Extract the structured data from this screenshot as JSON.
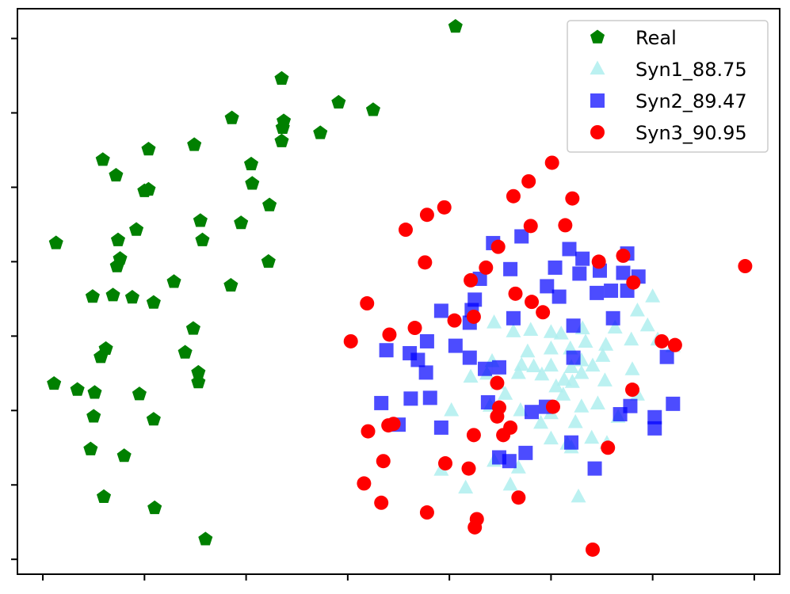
{
  "chart_data": {
    "type": "scatter",
    "title": "",
    "xlabel": "",
    "ylabel": "",
    "xlim": [
      -0.25,
      7.25
    ],
    "ylim": [
      -0.2,
      7.4
    ],
    "xticks": [
      0,
      1,
      2,
      3,
      4,
      5,
      6,
      7
    ],
    "yticks": [
      0,
      1,
      2,
      3,
      4,
      5,
      6,
      7
    ],
    "tick_labels_shown": false,
    "grid": false,
    "legend_position": "top-right",
    "series": [
      {
        "name": "Real",
        "marker": "pentagon",
        "color": "#008000",
        "points": [
          [
            4.06,
            7.16
          ],
          [
            2.35,
            6.46
          ],
          [
            2.91,
            6.14
          ],
          [
            3.25,
            6.04
          ],
          [
            1.86,
            5.93
          ],
          [
            2.37,
            5.89
          ],
          [
            2.36,
            5.8
          ],
          [
            2.73,
            5.73
          ],
          [
            2.35,
            5.62
          ],
          [
            1.49,
            5.57
          ],
          [
            1.04,
            5.51
          ],
          [
            0.59,
            5.37
          ],
          [
            2.05,
            5.31
          ],
          [
            0.72,
            5.16
          ],
          [
            1.04,
            4.97
          ],
          [
            1.0,
            4.95
          ],
          [
            2.06,
            5.05
          ],
          [
            2.23,
            4.76
          ],
          [
            1.55,
            4.55
          ],
          [
            1.95,
            4.52
          ],
          [
            0.92,
            4.43
          ],
          [
            0.13,
            4.25
          ],
          [
            0.74,
            4.29
          ],
          [
            1.57,
            4.29
          ],
          [
            2.22,
            4.0
          ],
          [
            0.76,
            4.04
          ],
          [
            0.73,
            3.94
          ],
          [
            1.29,
            3.73
          ],
          [
            1.85,
            3.68
          ],
          [
            0.49,
            3.53
          ],
          [
            0.69,
            3.55
          ],
          [
            0.88,
            3.52
          ],
          [
            1.09,
            3.45
          ],
          [
            1.48,
            3.1
          ],
          [
            0.62,
            2.83
          ],
          [
            0.57,
            2.72
          ],
          [
            1.4,
            2.78
          ],
          [
            1.53,
            2.51
          ],
          [
            1.53,
            2.38
          ],
          [
            0.11,
            2.36
          ],
          [
            0.34,
            2.28
          ],
          [
            0.51,
            2.24
          ],
          [
            0.95,
            2.22
          ],
          [
            0.5,
            1.92
          ],
          [
            1.09,
            1.88
          ],
          [
            0.47,
            1.48
          ],
          [
            0.8,
            1.39
          ],
          [
            0.6,
            0.84
          ],
          [
            1.1,
            0.69
          ],
          [
            1.6,
            0.27
          ]
        ]
      },
      {
        "name": "Syn1_88.75",
        "marker": "triangle",
        "color": "#afeeee",
        "points": [
          [
            6.0,
            3.53
          ],
          [
            5.85,
            3.34
          ],
          [
            5.95,
            3.14
          ],
          [
            5.79,
            2.95
          ],
          [
            6.05,
            2.95
          ],
          [
            6.2,
            2.86
          ],
          [
            5.63,
            3.11
          ],
          [
            5.31,
            3.1
          ],
          [
            5.1,
            3.03
          ],
          [
            5.0,
            3.05
          ],
          [
            4.8,
            3.08
          ],
          [
            4.63,
            3.06
          ],
          [
            4.44,
            3.18
          ],
          [
            5.34,
            2.92
          ],
          [
            5.54,
            2.88
          ],
          [
            4.77,
            2.79
          ],
          [
            5.0,
            2.83
          ],
          [
            5.19,
            2.83
          ],
          [
            5.51,
            2.73
          ],
          [
            5.3,
            2.67
          ],
          [
            4.71,
            2.61
          ],
          [
            4.42,
            2.66
          ],
          [
            4.83,
            2.59
          ],
          [
            5.0,
            2.6
          ],
          [
            5.2,
            2.58
          ],
          [
            5.41,
            2.6
          ],
          [
            5.8,
            2.55
          ],
          [
            4.37,
            2.49
          ],
          [
            4.68,
            2.5
          ],
          [
            5.3,
            2.5
          ],
          [
            4.91,
            2.48
          ],
          [
            5.13,
            2.41
          ],
          [
            4.48,
            2.36
          ],
          [
            5.05,
            2.32
          ],
          [
            5.21,
            2.38
          ],
          [
            5.53,
            2.4
          ],
          [
            4.21,
            2.45
          ],
          [
            4.55,
            2.22
          ],
          [
            5.12,
            2.21
          ],
          [
            4.7,
            2.0
          ],
          [
            4.4,
            2.06
          ],
          [
            5.3,
            2.05
          ],
          [
            5.46,
            2.09
          ],
          [
            4.02,
            2.0
          ],
          [
            5.0,
            1.96
          ],
          [
            4.9,
            1.83
          ],
          [
            5.24,
            1.84
          ],
          [
            5.66,
            1.91
          ],
          [
            5.85,
            2.21
          ],
          [
            5.0,
            1.62
          ],
          [
            5.2,
            1.5
          ],
          [
            5.4,
            1.63
          ],
          [
            5.16,
            1.55
          ],
          [
            4.44,
            1.32
          ],
          [
            4.68,
            1.23
          ],
          [
            3.92,
            1.2
          ],
          [
            4.6,
            1.0
          ],
          [
            5.27,
            0.84
          ],
          [
            4.16,
            0.96
          ],
          [
            5.55,
            1.56
          ]
        ]
      },
      {
        "name": "Syn2_89.47",
        "marker": "square",
        "color": "#0000ff",
        "points": [
          [
            4.43,
            4.25
          ],
          [
            4.71,
            4.34
          ],
          [
            5.18,
            4.17
          ],
          [
            5.31,
            4.04
          ],
          [
            5.75,
            4.11
          ],
          [
            4.6,
            3.9
          ],
          [
            5.04,
            3.92
          ],
          [
            5.28,
            3.84
          ],
          [
            5.48,
            3.88
          ],
          [
            5.71,
            3.85
          ],
          [
            5.86,
            3.8
          ],
          [
            4.96,
            3.67
          ],
          [
            5.59,
            3.61
          ],
          [
            5.75,
            3.61
          ],
          [
            4.25,
            3.49
          ],
          [
            4.22,
            3.35
          ],
          [
            3.92,
            3.34
          ],
          [
            4.63,
            3.24
          ],
          [
            5.22,
            3.14
          ],
          [
            5.61,
            3.24
          ],
          [
            5.45,
            3.58
          ],
          [
            4.2,
            3.18
          ],
          [
            3.78,
            2.93
          ],
          [
            3.38,
            2.81
          ],
          [
            4.06,
            2.87
          ],
          [
            4.2,
            2.71
          ],
          [
            3.61,
            2.77
          ],
          [
            3.69,
            2.68
          ],
          [
            5.22,
            2.71
          ],
          [
            6.14,
            2.72
          ],
          [
            4.49,
            2.58
          ],
          [
            3.77,
            2.51
          ],
          [
            4.35,
            2.56
          ],
          [
            4.38,
            2.11
          ],
          [
            3.81,
            2.17
          ],
          [
            6.2,
            2.09
          ],
          [
            3.33,
            2.1
          ],
          [
            3.62,
            2.16
          ],
          [
            4.81,
            1.98
          ],
          [
            4.95,
            2.05
          ],
          [
            5.78,
            2.06
          ],
          [
            6.02,
            1.91
          ],
          [
            5.68,
            1.95
          ],
          [
            6.02,
            1.76
          ],
          [
            3.5,
            1.81
          ],
          [
            3.92,
            1.77
          ],
          [
            5.2,
            1.57
          ],
          [
            4.75,
            1.43
          ],
          [
            4.59,
            1.32
          ],
          [
            4.49,
            1.37
          ],
          [
            5.43,
            1.22
          ],
          [
            5.08,
            3.53
          ],
          [
            4.3,
            3.77
          ]
        ]
      },
      {
        "name": "Syn3_90.95",
        "marker": "circle",
        "color": "#ff0000",
        "points": [
          [
            5.01,
            5.33
          ],
          [
            4.78,
            5.08
          ],
          [
            4.63,
            4.88
          ],
          [
            5.21,
            4.85
          ],
          [
            3.95,
            4.73
          ],
          [
            5.14,
            4.49
          ],
          [
            3.57,
            4.43
          ],
          [
            3.78,
            4.63
          ],
          [
            4.8,
            4.48
          ],
          [
            4.48,
            4.2
          ],
          [
            6.91,
            3.94
          ],
          [
            5.47,
            4.0
          ],
          [
            5.71,
            4.08
          ],
          [
            3.76,
            3.99
          ],
          [
            4.36,
            3.92
          ],
          [
            4.21,
            3.75
          ],
          [
            5.81,
            3.72
          ],
          [
            4.65,
            3.57
          ],
          [
            3.19,
            3.44
          ],
          [
            4.81,
            3.46
          ],
          [
            4.24,
            3.26
          ],
          [
            4.05,
            3.21
          ],
          [
            4.92,
            3.32
          ],
          [
            3.66,
            3.11
          ],
          [
            3.41,
            3.02
          ],
          [
            3.03,
            2.93
          ],
          [
            6.09,
            2.93
          ],
          [
            6.22,
            2.88
          ],
          [
            5.8,
            2.28
          ],
          [
            4.47,
            2.37
          ],
          [
            4.47,
            1.92
          ],
          [
            3.45,
            1.82
          ],
          [
            5.02,
            2.05
          ],
          [
            4.6,
            1.77
          ],
          [
            4.53,
            1.67
          ],
          [
            3.2,
            1.72
          ],
          [
            3.4,
            1.8
          ],
          [
            4.24,
            1.67
          ],
          [
            5.56,
            1.5
          ],
          [
            3.35,
            1.32
          ],
          [
            3.96,
            1.29
          ],
          [
            3.16,
            1.02
          ],
          [
            3.33,
            0.76
          ],
          [
            4.19,
            1.22
          ],
          [
            4.68,
            0.83
          ],
          [
            3.78,
            0.63
          ],
          [
            4.27,
            0.54
          ],
          [
            4.25,
            0.43
          ],
          [
            5.41,
            0.13
          ],
          [
            4.49,
            2.04
          ]
        ]
      }
    ]
  }
}
